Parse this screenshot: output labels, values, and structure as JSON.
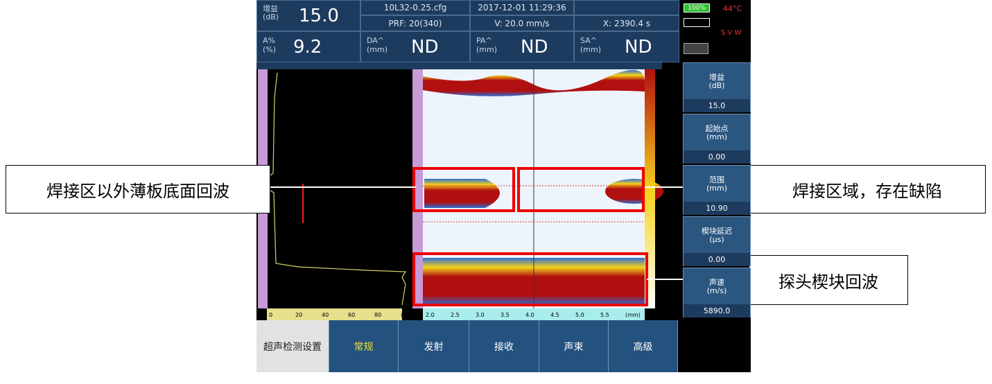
{
  "header": {
    "gain_label": "增益",
    "gain_unit": "(dB)",
    "gain_value": "15.0",
    "config": "10L32-0.25.cfg",
    "prf": "PRF: 20(340)",
    "datetime": "2017-12-01 11:29:36",
    "velocity": "V: 20.0 mm/s",
    "x_position": "X: 2390.4 s",
    "battery": "100%",
    "temperature": "44°C",
    "status_flags": "S V W"
  },
  "readouts": [
    {
      "label": "A%",
      "unit": "(%)",
      "value": "9.2"
    },
    {
      "label": "DA^",
      "unit": "(mm)",
      "value": "ND"
    },
    {
      "label": "PA^",
      "unit": "(mm)",
      "value": "ND"
    },
    {
      "label": "SA^",
      "unit": "(mm)",
      "value": "ND"
    }
  ],
  "side_menu": [
    {
      "label": "增益",
      "unit": "(dB)",
      "value": "15.0"
    },
    {
      "label": "起始点",
      "unit": "(mm)",
      "value": "0.00"
    },
    {
      "label": "范围",
      "unit": "(mm)",
      "value": "10.90"
    },
    {
      "label": "楔块延迟",
      "unit": "(µs)",
      "value": "0.00"
    },
    {
      "label": "声速",
      "unit": "(m/s)",
      "value": "5890.0"
    }
  ],
  "tabs": [
    "超声检测设置",
    "常规",
    "发射",
    "接收",
    "声束",
    "高级"
  ],
  "a_scan_axis": [
    "0",
    "20",
    "40",
    "60",
    "80",
    "(%)"
  ],
  "b_scan_axis": [
    "2.0",
    "2.5",
    "3.0",
    "3.5",
    "4.0",
    "4.5",
    "5.0",
    "5.5",
    "(mm)"
  ],
  "annotations": [
    "焊接区以外薄板底面回波",
    "焊接区域，存在缺陷",
    "探头楔块回波"
  ]
}
